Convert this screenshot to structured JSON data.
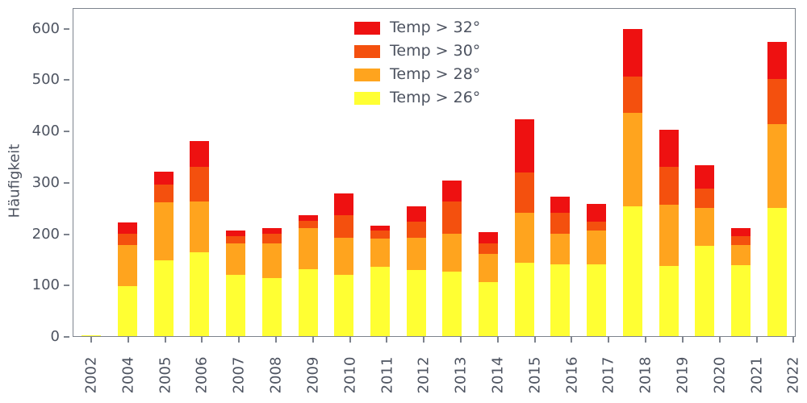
{
  "chart_data": {
    "type": "bar",
    "stacked": true,
    "title": "",
    "xlabel": "",
    "ylabel": "Häufigkeit",
    "ylim": [
      0,
      640
    ],
    "yticks": [
      0,
      100,
      200,
      300,
      400,
      500,
      600
    ],
    "grid": false,
    "legend_position": "upper center, no frame",
    "categories": [
      "2002",
      "2004",
      "2005",
      "2006",
      "2007",
      "2008",
      "2009",
      "2010",
      "2011",
      "2012",
      "2013",
      "2014",
      "2015",
      "2016",
      "2017",
      "2018",
      "2019",
      "2020",
      "2021",
      "2022"
    ],
    "series": [
      {
        "name": "Temp > 26°",
        "color": "#ffff33",
        "values": [
          2,
          97,
          148,
          163,
          120,
          113,
          130,
          120,
          135,
          128,
          125,
          105,
          142,
          140,
          140,
          253,
          137,
          175,
          138,
          250
        ]
      },
      {
        "name": "Temp > 28°",
        "color": "#ffa41e",
        "values": [
          0,
          80,
          112,
          99,
          60,
          67,
          80,
          72,
          55,
          64,
          75,
          55,
          98,
          60,
          65,
          182,
          118,
          75,
          40,
          163
        ]
      },
      {
        "name": "Temp > 30°",
        "color": "#f4500e",
        "values": [
          0,
          23,
          35,
          68,
          15,
          20,
          15,
          43,
          15,
          30,
          62,
          20,
          78,
          40,
          17,
          70,
          75,
          37,
          17,
          87
        ]
      },
      {
        "name": "Temp > 32°",
        "color": "#ee1111",
        "values": [
          0,
          22,
          25,
          50,
          10,
          10,
          10,
          43,
          10,
          30,
          41,
          23,
          104,
          32,
          36,
          92,
          72,
          45,
          15,
          72
        ]
      }
    ],
    "legend_entries": [
      {
        "label": "Temp > 32°",
        "color": "#ee1111"
      },
      {
        "label": "Temp > 30°",
        "color": "#f4500e"
      },
      {
        "label": "Temp > 28°",
        "color": "#ffa41e"
      },
      {
        "label": "Temp > 26°",
        "color": "#ffff33"
      }
    ]
  },
  "colors": {
    "axis_text": "#4d5360",
    "spine": "#7d838d",
    "background": "#ffffff"
  }
}
